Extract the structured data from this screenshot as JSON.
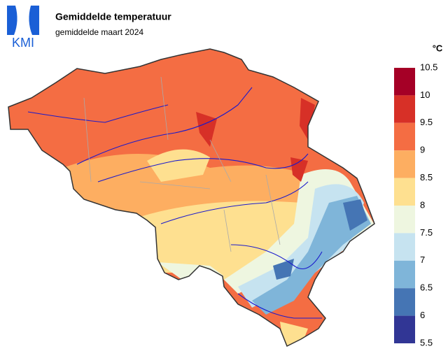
{
  "header": {
    "logo": "KMI",
    "title": "Gemiddelde temperatuur",
    "subtitle": "gemiddelde maart 2024"
  },
  "legend": {
    "unit": "°C",
    "ticks": [
      10.5,
      10,
      9.5,
      9,
      8.5,
      8,
      7.5,
      7,
      6.5,
      6,
      5.5
    ],
    "colors": [
      "#a50026",
      "#d73027",
      "#f46d43",
      "#fdae61",
      "#fee090",
      "#eef6e0",
      "#c6e3f0",
      "#7fb5d9",
      "#4575b4",
      "#313695"
    ]
  }
}
